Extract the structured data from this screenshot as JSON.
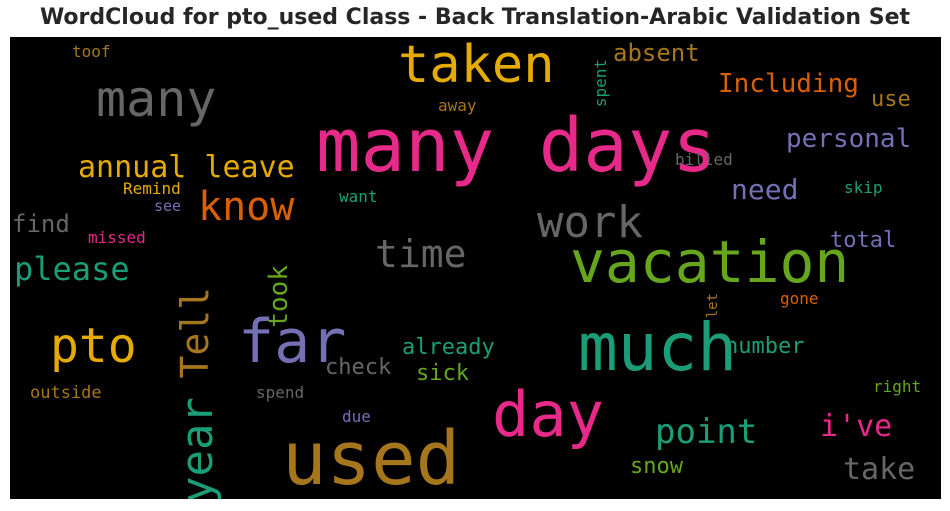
{
  "chart_data": {
    "type": "wordcloud",
    "title": "WordCloud for pto_used Class - Back Translation-Arabic Validation Set",
    "background": "#000000",
    "colors": {
      "pink": "#e7298a",
      "orange": "#d95f02",
      "gold": "#e6ab02",
      "green": "#66a61e",
      "teal": "#1b9e77",
      "purple": "#7570b3",
      "gray": "#666666",
      "brown": "#a6761d"
    },
    "words": [
      {
        "text": "many days",
        "color": "pink"
      },
      {
        "text": "used",
        "color": "brown"
      },
      {
        "text": "much",
        "color": "teal"
      },
      {
        "text": "vacation",
        "color": "green"
      },
      {
        "text": "day",
        "color": "pink"
      },
      {
        "text": "far",
        "color": "purple"
      },
      {
        "text": "taken",
        "color": "gold"
      },
      {
        "text": "many",
        "color": "gray"
      },
      {
        "text": "pto",
        "color": "gold"
      },
      {
        "text": "year",
        "color": "teal"
      },
      {
        "text": "Tell",
        "color": "brown"
      },
      {
        "text": "know",
        "color": "orange"
      },
      {
        "text": "work",
        "color": "gray"
      },
      {
        "text": "time",
        "color": "gray"
      },
      {
        "text": "annual leave",
        "color": "gold"
      },
      {
        "text": "please",
        "color": "teal"
      },
      {
        "text": "point",
        "color": "teal"
      },
      {
        "text": "take",
        "color": "gray"
      },
      {
        "text": "took",
        "color": "green"
      },
      {
        "text": "need",
        "color": "purple"
      },
      {
        "text": "i've",
        "color": "pink"
      },
      {
        "text": "personal",
        "color": "purple"
      },
      {
        "text": "Including",
        "color": "orange"
      },
      {
        "text": "absent",
        "color": "brown"
      },
      {
        "text": "use",
        "color": "brown"
      },
      {
        "text": "already",
        "color": "teal"
      },
      {
        "text": "sick",
        "color": "green"
      },
      {
        "text": "check",
        "color": "gray"
      },
      {
        "text": "number",
        "color": "teal"
      },
      {
        "text": "total",
        "color": "purple"
      },
      {
        "text": "snow",
        "color": "green"
      },
      {
        "text": "find",
        "color": "gray"
      },
      {
        "text": "missed",
        "color": "pink"
      },
      {
        "text": "Remind",
        "color": "gold"
      },
      {
        "text": "see",
        "color": "purple"
      },
      {
        "text": "want",
        "color": "teal"
      },
      {
        "text": "away",
        "color": "brown"
      },
      {
        "text": "spent",
        "color": "teal"
      },
      {
        "text": "billed",
        "color": "gray"
      },
      {
        "text": "skip",
        "color": "teal"
      },
      {
        "text": "gone",
        "color": "orange"
      },
      {
        "text": "let",
        "color": "brown"
      },
      {
        "text": "right",
        "color": "green"
      },
      {
        "text": "outside",
        "color": "brown"
      },
      {
        "text": "spend",
        "color": "gray"
      },
      {
        "text": "due",
        "color": "purple"
      },
      {
        "text": "toof",
        "color": "brown"
      }
    ]
  }
}
